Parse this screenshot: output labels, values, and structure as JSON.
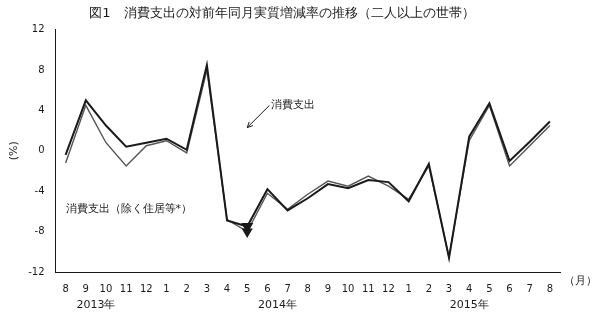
{
  "chart_data": {
    "type": "line",
    "title": "図1　消費支出の対前年同月実質増減率の推移（二人以上の世帯）",
    "ylabel": "(%)",
    "xlabel": "（月）",
    "categories": [
      "8",
      "9",
      "10",
      "11",
      "12",
      "1",
      "2",
      "3",
      "4",
      "5",
      "6",
      "7",
      "8",
      "9",
      "10",
      "11",
      "12",
      "1",
      "2",
      "3",
      "4",
      "5",
      "6",
      "7",
      "8"
    ],
    "series": [
      {
        "color": "#1a1a1a",
        "values": [
          -0.4,
          5.0,
          2.5,
          0.4,
          0.8,
          1.2,
          0.1,
          8.5,
          -6.9,
          -7.5,
          -3.8,
          -5.9,
          -4.7,
          -3.3,
          -3.7,
          -2.9,
          -3.1,
          -5.0,
          -1.3,
          -10.6,
          1.4,
          4.7,
          -1.0,
          0.9,
          2.9
        ]
      },
      {
        "color": "#555555",
        "values": [
          -1.2,
          4.5,
          0.8,
          -1.5,
          0.5,
          1.0,
          -0.2,
          8.0,
          -6.8,
          -8.0,
          -4.2,
          -5.8,
          -4.3,
          -3.0,
          -3.5,
          -2.5,
          -3.5,
          -4.8,
          -1.5,
          -10.5,
          1.0,
          4.5,
          -1.5,
          0.5,
          2.5
        ]
      }
    ],
    "ylim": [
      -12,
      12
    ],
    "yticks": [
      -12,
      -8,
      -4,
      0,
      4,
      8,
      12
    ],
    "grid": false,
    "annotations": [
      {
        "marker": "triangle_down",
        "x": 9
      },
      {
        "text": "消費支出",
        "x": 10.2,
        "y": 4.2,
        "arrow_x": 9,
        "arrow_y": 2.3
      },
      {
        "text": "消費支出（除く住居等*）",
        "x": 0.0,
        "y": -5.2
      },
      {
        "text": "2013年",
        "x": 1.5
      },
      {
        "text": "2014年",
        "x": 10.5
      },
      {
        "text": "2015年",
        "x": 20.0
      }
    ]
  }
}
